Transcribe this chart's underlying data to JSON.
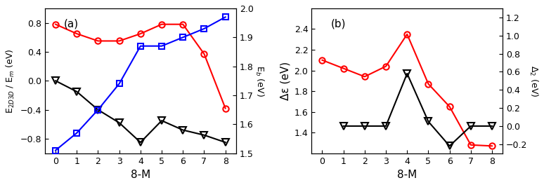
{
  "panel_a": {
    "x": [
      0,
      1,
      2,
      3,
      4,
      5,
      6,
      7,
      8
    ],
    "E2D3D": [
      0.78,
      0.65,
      0.55,
      0.55,
      0.65,
      0.78,
      0.78,
      0.37,
      -0.38
    ],
    "Em": [
      0.0,
      -0.15,
      -0.4,
      -0.58,
      -0.85,
      -0.55,
      -0.68,
      -0.75,
      -0.85
    ],
    "Eb": [
      1.51,
      1.57,
      1.65,
      1.74,
      1.87,
      1.87,
      1.9,
      1.93,
      1.97
    ],
    "E2D3D_color": "#ff0000",
    "Em_color": "#000000",
    "Eb_color": "#0000ff",
    "ylabel_left": "E$_{2D3D}$ / E$_m$ (eV)",
    "ylabel_right": "E$_b$ (eV)",
    "xlabel": "8-M",
    "label": "(a)",
    "ylim_left": [
      -1.0,
      1.0
    ],
    "ylim_right": [
      1.5,
      2.0
    ],
    "yticks_left": [
      -0.8,
      -0.4,
      0.0,
      0.4,
      0.8
    ],
    "yticks_right": [
      1.5,
      1.6,
      1.7,
      1.8,
      1.9,
      2.0
    ]
  },
  "panel_b": {
    "x": [
      0,
      1,
      2,
      3,
      4,
      5,
      6,
      7,
      8
    ],
    "delta_eps": [
      2.1,
      2.02,
      1.94,
      2.04,
      2.35,
      1.87,
      1.65,
      1.28,
      1.27
    ],
    "delta2_x": [
      1,
      2,
      3,
      4,
      5,
      6,
      7,
      8
    ],
    "delta2_y": [
      0.0,
      0.0,
      0.0,
      0.58,
      0.05,
      -0.22,
      0.0,
      0.0
    ],
    "delta_eps_color": "#ff0000",
    "delta2_color": "#000000",
    "ylabel_left": "Δε (eV)",
    "ylabel_right": "Δ$_2$ (eV)",
    "xlabel": "8-M",
    "label": "(b)",
    "ylim_left": [
      1.2,
      2.6
    ],
    "ylim_right": [
      -0.3,
      1.3
    ],
    "yticks_left": [
      1.4,
      1.6,
      1.8,
      2.0,
      2.2,
      2.4
    ],
    "yticks_right": [
      -0.2,
      0.0,
      0.2,
      0.4,
      0.6,
      0.8,
      1.0,
      1.2
    ]
  },
  "figsize": [
    7.74,
    2.64
  ],
  "dpi": 100
}
